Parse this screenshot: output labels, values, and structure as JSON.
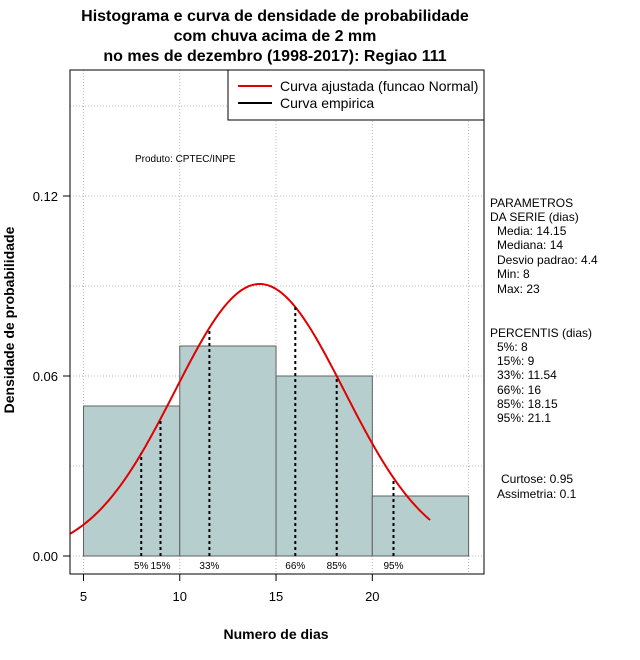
{
  "chart_data": {
    "type": "bar",
    "title_lines": [
      "Histograma e curva de densidade de probabilidade",
      "com chuva acima de 2 mm",
      "no mes de dezembro (1998-2017): Regiao 111"
    ],
    "xlabel": "Numero de dias",
    "ylabel": "Densidade de probabilidade",
    "xlim": [
      4.3,
      25.8
    ],
    "ylim": [
      -0.006,
      0.162
    ],
    "x_ticks": [
      "5",
      "10",
      "15",
      "20"
    ],
    "x_tick_values": [
      5,
      10,
      15,
      20
    ],
    "y_ticks": [
      "0.00",
      "0.06",
      "0.12"
    ],
    "y_tick_values": [
      0.0,
      0.06,
      0.12
    ],
    "grid": true,
    "bins": [
      {
        "from": 5,
        "to": 10,
        "density": 0.05
      },
      {
        "from": 10,
        "to": 15,
        "density": 0.07
      },
      {
        "from": 15,
        "to": 20,
        "density": 0.06
      },
      {
        "from": 20,
        "to": 25,
        "density": 0.02
      }
    ],
    "bar_color": "#b7cece",
    "fitted_curve": {
      "name": "Curva ajustada (funcao Normal)",
      "mean": 14.15,
      "sd": 4.4,
      "x_from": 4.3,
      "x_to": 23,
      "color": "#e00000"
    },
    "empirical_curve": {
      "name": "Curva empirica",
      "color": "#000000"
    },
    "legend_position": "top-right",
    "percentile_lines": [
      {
        "label": "5%",
        "x": 8
      },
      {
        "label": "15%",
        "x": 9
      },
      {
        "label": "33%",
        "x": 11.54
      },
      {
        "label": "66%",
        "x": 16
      },
      {
        "label": "85%",
        "x": 18.15
      },
      {
        "label": "95%",
        "x": 21.1
      }
    ],
    "annotation": "Produto: CPTEC/INPE",
    "parametros": {
      "header": [
        "PARAMETROS",
        "DA SERIE (dias)"
      ],
      "items": [
        "Media: 14.15",
        "Mediana: 14",
        "Desvio padrao: 4.4",
        "Min: 8",
        "Max: 23"
      ]
    },
    "percentis": {
      "header": "PERCENTIS (dias)",
      "items": [
        "5%: 8",
        "15%: 9",
        "33%: 11.54",
        "66%: 16",
        "85%: 18.15",
        "95%: 21.1"
      ]
    },
    "shape_stats": [
      "Curtose: 0.95",
      "Assimetria: 0.1"
    ]
  }
}
